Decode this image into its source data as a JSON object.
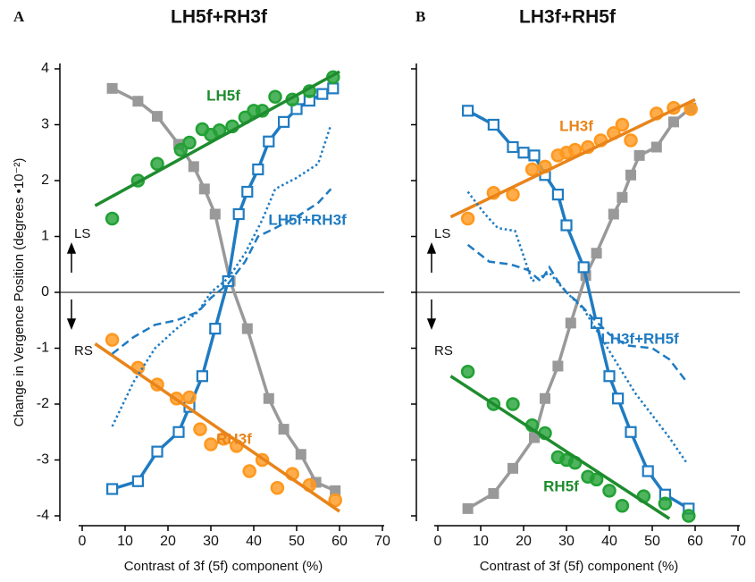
{
  "chart_data": [
    {
      "type": "line",
      "panel": "A",
      "title": "LH5f+RH3f",
      "ylabel": "Change in Vergence Position (degrees •10⁻²)",
      "xlabel": "Contrast of 3f (5f) component (%)",
      "up_label": "LS",
      "down_label": "RS",
      "zero_line": true,
      "show_ytick_labels": true,
      "xlim": [
        0,
        70
      ],
      "xticks": [
        0,
        10,
        20,
        30,
        40,
        50,
        60,
        70
      ],
      "ylim": [
        -4,
        4
      ],
      "yticks": [
        -4,
        -3,
        -2,
        -1,
        0,
        1,
        2,
        3,
        4
      ],
      "series": [
        {
          "color": "#999999",
          "marker": "square-filled",
          "line": "solid",
          "x": [
            7,
            13,
            17.5,
            22.5,
            26,
            28.5,
            31,
            34.5,
            38.5,
            43.5,
            47,
            51,
            54.5,
            59
          ],
          "values": [
            3.65,
            3.42,
            3.15,
            2.65,
            2.25,
            1.85,
            1.4,
            0.2,
            -0.65,
            -1.9,
            -2.45,
            -2.9,
            -3.4,
            -3.55
          ]
        },
        {
          "name": "LH5f+RH3f",
          "color": "#1f7bc1",
          "marker": "square-open",
          "line": "solid",
          "x": [
            7,
            13,
            17.5,
            22.5,
            25,
            28,
            31,
            34,
            36.5,
            38.5,
            41,
            43.5,
            47,
            50,
            53,
            56,
            58.5
          ],
          "values": [
            -3.52,
            -3.38,
            -2.85,
            -2.5,
            -2.05,
            -1.5,
            -0.65,
            0.2,
            1.4,
            1.8,
            2.2,
            2.7,
            3.05,
            3.28,
            3.43,
            3.55,
            3.65
          ]
        },
        {
          "name": "LH5f",
          "color": "#1e8c2e",
          "marker": "circle",
          "line": "none",
          "x": [
            7,
            13,
            17.5,
            23,
            25,
            28,
            30,
            32,
            35,
            38,
            40,
            42,
            45,
            49,
            53,
            58.5
          ],
          "values": [
            1.32,
            2.0,
            2.3,
            2.55,
            2.68,
            2.92,
            2.82,
            2.9,
            2.97,
            3.13,
            3.25,
            3.25,
            3.5,
            3.45,
            3.6,
            3.85
          ]
        },
        {
          "color": "#1e8c2e",
          "marker": "none",
          "line": "solid",
          "x": [
            3,
            60
          ],
          "values": [
            1.55,
            3.95
          ]
        },
        {
          "name": "RH3f",
          "color": "#e8841a",
          "marker": "circle",
          "line": "none",
          "x": [
            7,
            13,
            17.5,
            22,
            25,
            27.5,
            30,
            33,
            36,
            39,
            42,
            45.5,
            49,
            53,
            59
          ],
          "values": [
            -0.85,
            -1.35,
            -1.65,
            -1.9,
            -1.88,
            -2.45,
            -2.72,
            -2.62,
            -2.75,
            -3.2,
            -3.0,
            -3.5,
            -3.25,
            -3.45,
            -3.72
          ]
        },
        {
          "color": "#e8841a",
          "marker": "none",
          "line": "solid",
          "x": [
            3,
            60
          ],
          "values": [
            -0.92,
            -3.92
          ]
        },
        {
          "color": "#1f7bc1",
          "marker": "none",
          "line": "dashed",
          "x": [
            7,
            12,
            17,
            22,
            27,
            30,
            34,
            38,
            41,
            45,
            50,
            55,
            58
          ],
          "values": [
            -1.1,
            -0.8,
            -0.58,
            -0.5,
            -0.35,
            -0.1,
            0.15,
            0.55,
            1.0,
            1.15,
            1.35,
            1.6,
            1.85
          ]
        },
        {
          "color": "#1f7bc1",
          "marker": "none",
          "line": "dotted",
          "x": [
            7,
            12,
            17,
            22,
            27,
            30,
            34,
            38,
            42,
            45,
            50,
            55,
            58
          ],
          "values": [
            -2.4,
            -1.6,
            -1.0,
            -0.65,
            -0.35,
            0,
            0.25,
            0.7,
            1.3,
            1.85,
            2.05,
            2.3,
            3.0
          ]
        }
      ]
    },
    {
      "type": "line",
      "panel": "B",
      "title": "LH3f+RH5f",
      "xlabel": "Contrast of 3f (5f) component (%)",
      "up_label": "LS",
      "down_label": "RS",
      "zero_line": true,
      "show_ytick_labels": false,
      "xlim": [
        0,
        70
      ],
      "xticks": [
        0,
        10,
        20,
        30,
        40,
        50,
        60,
        70
      ],
      "ylim": [
        -4,
        4
      ],
      "yticks": [
        -4,
        -3,
        -2,
        -1,
        0,
        1,
        2,
        3,
        4
      ],
      "series": [
        {
          "color": "#999999",
          "marker": "square-filled",
          "line": "solid",
          "x": [
            7,
            13,
            17.5,
            22.5,
            25,
            28,
            31,
            34.5,
            37,
            41,
            43,
            45,
            47,
            51,
            55,
            59
          ],
          "values": [
            -3.87,
            -3.6,
            -3.15,
            -2.6,
            -1.9,
            -1.32,
            -0.55,
            0.3,
            0.7,
            1.4,
            1.7,
            2.1,
            2.45,
            2.6,
            3.05,
            3.3
          ]
        },
        {
          "name": "LH3f+RH5f",
          "color": "#1f7bc1",
          "marker": "square-open",
          "line": "solid",
          "x": [
            7,
            13,
            17.5,
            20,
            22.5,
            25,
            28,
            30,
            34,
            37,
            40,
            42,
            45,
            49,
            53,
            58.5
          ],
          "values": [
            3.25,
            3.0,
            2.6,
            2.5,
            2.45,
            2.1,
            1.75,
            1.2,
            0.45,
            -0.55,
            -1.5,
            -1.9,
            -2.5,
            -3.2,
            -3.62,
            -3.87
          ]
        },
        {
          "name": "LH3f",
          "color": "#e8841a",
          "marker": "circle",
          "line": "none",
          "x": [
            7,
            13,
            17.5,
            22,
            25,
            28,
            30,
            32,
            35,
            38,
            41,
            43,
            45,
            51,
            55,
            59
          ],
          "values": [
            1.32,
            1.78,
            1.75,
            2.2,
            2.25,
            2.45,
            2.5,
            2.55,
            2.6,
            2.72,
            2.85,
            3.0,
            2.72,
            3.2,
            3.3,
            3.28
          ]
        },
        {
          "color": "#e8841a",
          "marker": "none",
          "line": "solid",
          "x": [
            3,
            60
          ],
          "values": [
            1.35,
            3.45
          ]
        },
        {
          "name": "RH5f",
          "color": "#1e8c2e",
          "marker": "circle",
          "line": "none",
          "x": [
            7,
            13,
            17.5,
            22,
            25,
            28,
            30,
            32,
            35,
            37,
            40,
            43,
            48,
            53,
            58.5
          ],
          "values": [
            -1.42,
            -2.0,
            -2.0,
            -2.38,
            -2.52,
            -2.95,
            -3.0,
            -3.05,
            -3.3,
            -3.35,
            -3.55,
            -3.82,
            -3.65,
            -3.78,
            -4.0
          ]
        },
        {
          "color": "#1e8c2e",
          "marker": "none",
          "line": "solid",
          "x": [
            3,
            54
          ],
          "values": [
            -1.5,
            -4.05
          ]
        },
        {
          "color": "#1f7bc1",
          "marker": "none",
          "line": "dashed",
          "x": [
            7,
            12,
            17,
            21,
            24,
            26,
            28,
            30,
            33,
            36,
            40,
            44,
            50,
            54,
            58
          ],
          "values": [
            0.85,
            0.55,
            0.5,
            0.4,
            0.2,
            0.45,
            0.2,
            0.0,
            -0.2,
            -0.45,
            -0.75,
            -0.95,
            -1.0,
            -1.2,
            -1.6
          ]
        },
        {
          "color": "#1f7bc1",
          "marker": "none",
          "line": "dotted",
          "x": [
            7,
            11,
            14,
            18,
            22,
            26,
            30,
            34,
            38,
            42,
            46,
            50,
            54,
            58
          ],
          "values": [
            1.8,
            1.4,
            1.15,
            1.1,
            0.2,
            0.35,
            0,
            -0.3,
            -0.8,
            -1.3,
            -1.8,
            -2.2,
            -2.6,
            -3.05
          ]
        }
      ]
    }
  ]
}
